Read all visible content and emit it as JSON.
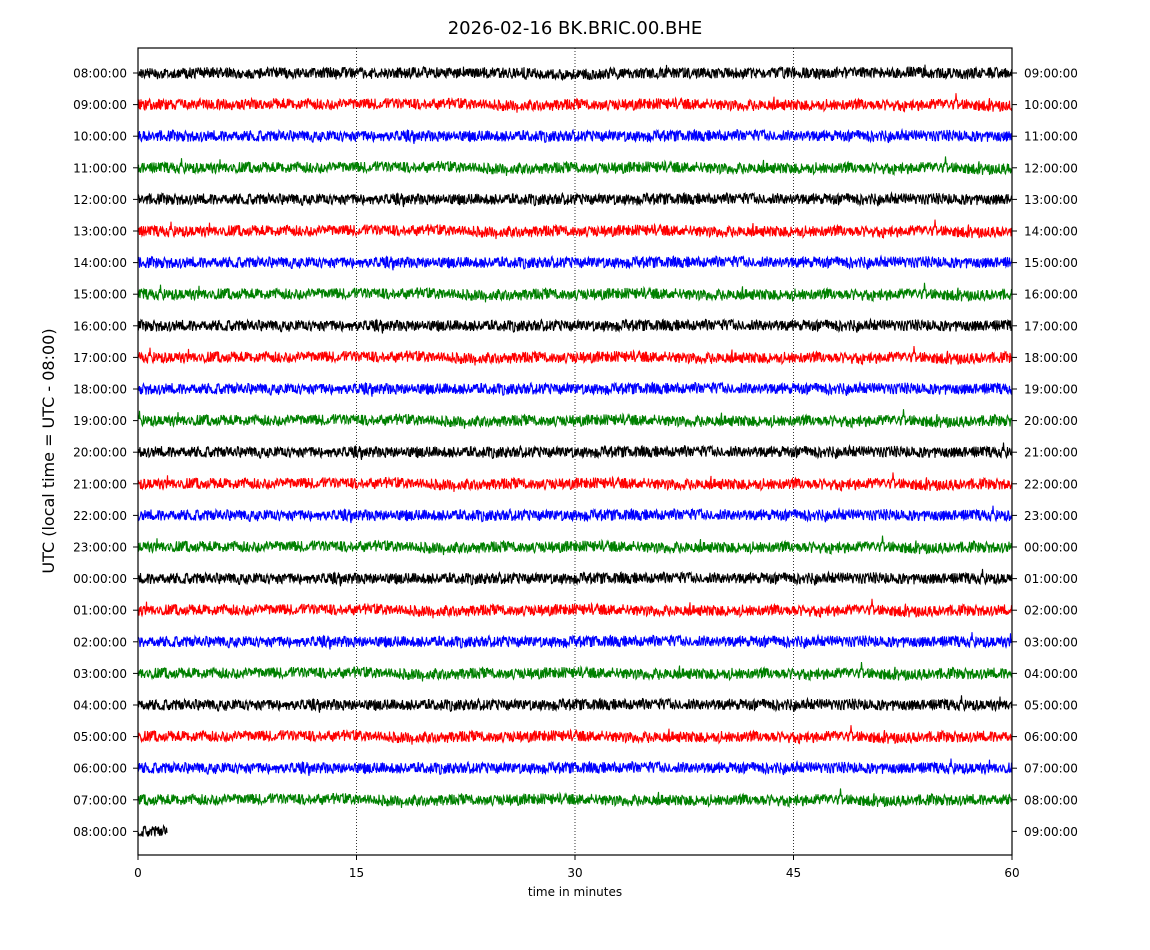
{
  "chart_data": {
    "type": "line",
    "title": "2026-02-16 BK.BRIC.00.BHE",
    "xlabel": "time in minutes",
    "ylabel": "UTC (local time = UTC - 08:00)",
    "xlim": [
      0,
      60
    ],
    "x_ticks": [
      0,
      15,
      30,
      45,
      60
    ],
    "x_gridlines": [
      15,
      30,
      45
    ],
    "grid_style": "dotted vertical",
    "left_tick_labels": [
      "08:00:00",
      "09:00:00",
      "10:00:00",
      "11:00:00",
      "12:00:00",
      "13:00:00",
      "14:00:00",
      "15:00:00",
      "16:00:00",
      "17:00:00",
      "18:00:00",
      "19:00:00",
      "20:00:00",
      "21:00:00",
      "22:00:00",
      "23:00:00",
      "00:00:00",
      "01:00:00",
      "02:00:00",
      "03:00:00",
      "04:00:00",
      "05:00:00",
      "06:00:00",
      "07:00:00",
      "08:00:00"
    ],
    "right_tick_labels": [
      "09:00:00",
      "10:00:00",
      "11:00:00",
      "12:00:00",
      "13:00:00",
      "14:00:00",
      "15:00:00",
      "16:00:00",
      "17:00:00",
      "18:00:00",
      "19:00:00",
      "20:00:00",
      "21:00:00",
      "22:00:00",
      "23:00:00",
      "00:00:00",
      "01:00:00",
      "02:00:00",
      "03:00:00",
      "04:00:00",
      "05:00:00",
      "06:00:00",
      "07:00:00",
      "08:00:00",
      "09:00:00"
    ],
    "color_cycle": [
      "#000000",
      "#ff0000",
      "#0000ff",
      "#008000"
    ],
    "trace_durations_minutes": [
      60,
      60,
      60,
      60,
      60,
      60,
      60,
      60,
      60,
      60,
      60,
      60,
      60,
      60,
      60,
      60,
      60,
      60,
      60,
      60,
      60,
      60,
      60,
      60,
      2
    ]
  }
}
